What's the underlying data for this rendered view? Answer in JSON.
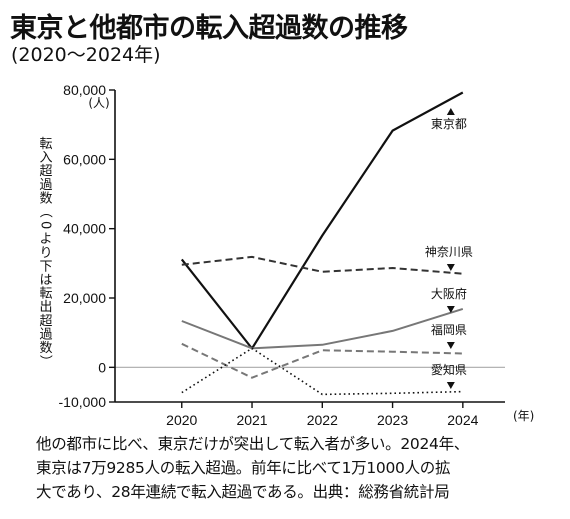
{
  "title": "東京と他都市の転入超過数の推移",
  "subtitle": "(2020〜2024年)",
  "caption": [
    "他の都市に比べ、東京だけが突出して転入者が多い。2024年、",
    "東京は7万9285人の転入超過。前年に比べて1万1000人の拡",
    "大であり、28年連続で転入超過である。出典：総務省統計局"
  ],
  "chart_data": {
    "type": "line",
    "x": [
      2020,
      2021,
      2022,
      2023,
      2024
    ],
    "xlabel": "(年)",
    "ylabel": "転入超過数（0より下は転出超過数）",
    "yunit": "(人)",
    "ylim": [
      -10000,
      80000
    ],
    "yticks": [
      80000,
      60000,
      40000,
      20000,
      0,
      -10000
    ],
    "ytick_labels": [
      "80,000",
      "60,000",
      "40,000",
      "20,000",
      "0",
      "-10,000"
    ],
    "grid": false,
    "series": [
      {
        "name": "東京都",
        "style": "solid",
        "color": "#111111",
        "values": [
          31125,
          5433,
          38023,
          68285,
          79285
        ],
        "marker": "up"
      },
      {
        "name": "神奈川県",
        "style": "dashed",
        "color": "#333333",
        "values": [
          29574,
          31844,
          27564,
          28659,
          27000
        ],
        "marker": "down"
      },
      {
        "name": "大阪府",
        "style": "solid",
        "color": "#777777",
        "values": [
          13356,
          5500,
          6500,
          10500,
          16848
        ],
        "marker": "down"
      },
      {
        "name": "福岡県",
        "style": "dashed",
        "color": "#777777",
        "values": [
          6780,
          -3000,
          4900,
          4500,
          4000
        ],
        "marker": "down"
      },
      {
        "name": "愛知県",
        "style": "dotted",
        "color": "#111111",
        "values": [
          -7300,
          5500,
          -7800,
          -7500,
          -7000
        ],
        "marker": "down"
      }
    ]
  }
}
